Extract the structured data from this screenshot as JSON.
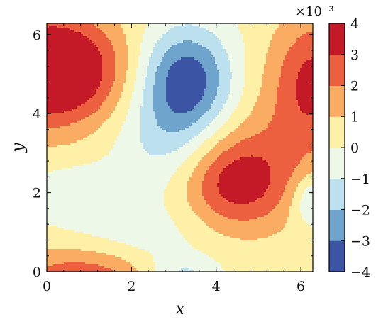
{
  "chart_data": {
    "type": "heatmap",
    "subtype": "filled-contour",
    "xlabel": "x",
    "ylabel": "y",
    "xlim": [
      0,
      6.2832
    ],
    "ylim": [
      0,
      6.2832
    ],
    "x_ticks": [
      "0",
      "2",
      "4",
      "6"
    ],
    "y_ticks": [
      "0",
      "2",
      "4",
      "6"
    ],
    "colorbar": {
      "exponent_label": "×10⁻³",
      "ticks": [
        "−4",
        "−3",
        "−2",
        "−1",
        "0",
        "1",
        "2",
        "3",
        "4"
      ],
      "levels": [
        -4,
        -3,
        -2,
        -1,
        0,
        1,
        2,
        3,
        4
      ],
      "colors": [
        "#3b54a4",
        "#6fa5cd",
        "#bde0ee",
        "#eef8e9",
        "#fef0a6",
        "#faad62",
        "#ec6040",
        "#c41a27"
      ],
      "colormap": "RdYlBu_r"
    },
    "features": [
      {
        "kind": "max",
        "x": 0.45,
        "y": 5.1,
        "value": 3.5
      },
      {
        "kind": "min",
        "x": 3.3,
        "y": 4.85,
        "value": -3.5
      },
      {
        "kind": "max",
        "x": 4.45,
        "y": 2.2,
        "value": 2.5
      },
      {
        "kind": "max",
        "x": 6.2,
        "y": 4.9,
        "value": 2.5
      }
    ],
    "grid": false
  }
}
